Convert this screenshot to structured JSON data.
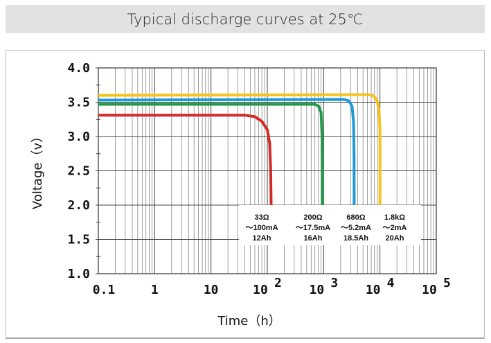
{
  "chart_data": {
    "type": "line",
    "title": "Typical discharge curves at 25℃",
    "xlabel": "Time（h）",
    "ylabel": "Voltage（v）",
    "xscale": "log",
    "xlim": [
      0.1,
      100000
    ],
    "ylim": [
      1.0,
      4.0
    ],
    "grid": true,
    "x_ticks": [
      {
        "label": "0.1",
        "sup": ""
      },
      {
        "label": "1",
        "sup": ""
      },
      {
        "label": "10",
        "sup": ""
      },
      {
        "label": "10",
        "sup": "2"
      },
      {
        "label": "10",
        "sup": "3"
      },
      {
        "label": "10",
        "sup": "4"
      },
      {
        "label": "10",
        "sup": "5"
      }
    ],
    "y_ticks": [
      "4.0",
      "3.5",
      "3.0",
      "2.5",
      "2.0",
      "1.5",
      "1.0"
    ],
    "y_tick_values": [
      4.0,
      3.5,
      3.0,
      2.5,
      2.0,
      1.5,
      1.0
    ],
    "series": [
      {
        "name": "33Ω",
        "current": "～100mA",
        "capacity": "12Ah",
        "color": "#d42a25",
        "points": [
          [
            0.1,
            3.31
          ],
          [
            40,
            3.31
          ],
          [
            60,
            3.29
          ],
          [
            80,
            3.22
          ],
          [
            100,
            3.1
          ],
          [
            110,
            2.9
          ],
          [
            115,
            2.5
          ],
          [
            117,
            2.0
          ]
        ]
      },
      {
        "name": "200Ω",
        "current": "～17.5mA",
        "capacity": "16Ah",
        "color": "#1f9a48",
        "points": [
          [
            0.1,
            3.47
          ],
          [
            700,
            3.47
          ],
          [
            820,
            3.44
          ],
          [
            900,
            3.35
          ],
          [
            940,
            3.0
          ],
          [
            950,
            2.5
          ],
          [
            955,
            2.0
          ]
        ]
      },
      {
        "name": "680Ω",
        "current": "～5.2mA",
        "capacity": "18.5Ah",
        "color": "#1e9ad6",
        "points": [
          [
            0.1,
            3.53
          ],
          [
            2300,
            3.54
          ],
          [
            2800,
            3.52
          ],
          [
            3200,
            3.44
          ],
          [
            3400,
            3.2
          ],
          [
            3470,
            2.7
          ],
          [
            3480,
            2.0
          ]
        ]
      },
      {
        "name": "1.8kΩ",
        "current": "～2mA",
        "capacity": "20Ah",
        "color": "#f5c31c",
        "points": [
          [
            0.1,
            3.6
          ],
          [
            6000,
            3.61
          ],
          [
            7500,
            3.6
          ],
          [
            8800,
            3.53
          ],
          [
            9600,
            3.4
          ],
          [
            10000,
            3.1
          ],
          [
            10000,
            2.0
          ]
        ]
      }
    ]
  }
}
